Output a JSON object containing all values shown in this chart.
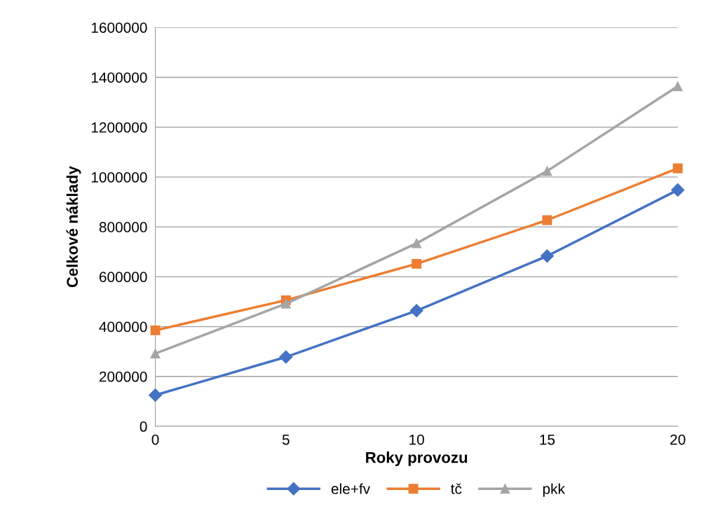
{
  "chart_data": {
    "type": "line",
    "xlabel": "Roky provozu",
    "ylabel": "Celkové náklady",
    "x": [
      0,
      5,
      10,
      15,
      20
    ],
    "series": [
      {
        "name": "ele+fv",
        "color": "#4472c4",
        "marker": "diamond",
        "values": [
          125000,
          278000,
          464000,
          683000,
          948000
        ]
      },
      {
        "name": "tč",
        "color": "#ed7d31",
        "marker": "square",
        "values": [
          385000,
          506000,
          652000,
          827000,
          1035000
        ]
      },
      {
        "name": "pkk",
        "color": "#a5a5a5",
        "marker": "triangle",
        "values": [
          292000,
          492000,
          734000,
          1024000,
          1364000
        ]
      }
    ],
    "xlim": [
      0,
      20
    ],
    "xticks": [
      0,
      5,
      10,
      15,
      20
    ],
    "ylim": [
      0,
      1600000
    ],
    "yticks": [
      0,
      200000,
      400000,
      600000,
      800000,
      1000000,
      1200000,
      1400000,
      1600000
    ],
    "grid": true,
    "legend": "bottom"
  }
}
